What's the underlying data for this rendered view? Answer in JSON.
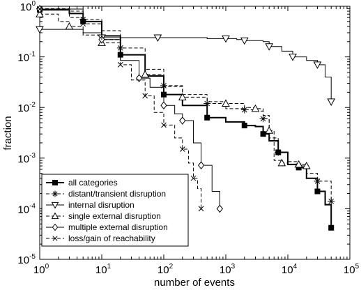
{
  "chart_data": {
    "type": "line",
    "xlabel": "number of events",
    "ylabel": "fraction",
    "xscale": "log",
    "yscale": "log",
    "xlim": [
      1,
      100000
    ],
    "ylim": [
      1e-05,
      1
    ],
    "x_ticks": [
      {
        "value": 1,
        "base": "10",
        "exp": "0"
      },
      {
        "value": 10,
        "base": "10",
        "exp": "1"
      },
      {
        "value": 100,
        "base": "10",
        "exp": "2"
      },
      {
        "value": 1000,
        "base": "10",
        "exp": "3"
      },
      {
        "value": 10000,
        "base": "10",
        "exp": "4"
      },
      {
        "value": 100000,
        "base": "10",
        "exp": "5"
      }
    ],
    "y_ticks": [
      {
        "value": 1e-05,
        "base": "10",
        "exp": "-5"
      },
      {
        "value": 0.0001,
        "base": "10",
        "exp": "-4"
      },
      {
        "value": 0.001,
        "base": "10",
        "exp": "-3"
      },
      {
        "value": 0.01,
        "base": "10",
        "exp": "-2"
      },
      {
        "value": 0.1,
        "base": "10",
        "exp": "-1"
      },
      {
        "value": 1,
        "base": "10",
        "exp": "0"
      }
    ],
    "grid": false,
    "legend_position": "bottom-left",
    "series": [
      {
        "name": "all categories",
        "style": "solid-thick",
        "marker": "filled-square",
        "color": "#000000",
        "x": [
          1,
          3,
          5,
          10,
          20,
          50,
          100,
          200,
          500,
          1000,
          2000,
          3000,
          4000,
          5000,
          7000,
          10000,
          15000,
          20000,
          30000,
          40000,
          50000
        ],
        "y": [
          0.85,
          0.72,
          0.5,
          0.26,
          0.11,
          0.042,
          0.018,
          0.011,
          0.0063,
          0.0052,
          0.0044,
          0.0042,
          0.003,
          0.0022,
          0.0013,
          0.00075,
          0.00065,
          0.0004,
          0.00022,
          0.00012,
          4.2e-05
        ]
      },
      {
        "name": "distant/transient disruption",
        "style": "dashed",
        "marker": "asterisk",
        "color": "#000000",
        "x": [
          1,
          3,
          5,
          10,
          20,
          50,
          100,
          200,
          500,
          1000,
          2000,
          3000,
          4000,
          5000,
          7000,
          10000,
          15000,
          20000,
          30000,
          50000
        ],
        "y": [
          0.9,
          0.8,
          0.55,
          0.33,
          0.15,
          0.057,
          0.027,
          0.018,
          0.012,
          0.0095,
          0.009,
          0.0085,
          0.006,
          0.0025,
          0.0013,
          0.00085,
          0.0007,
          0.0005,
          0.00035,
          0.00014
        ]
      },
      {
        "name": "internal disruption",
        "style": "solid-thin",
        "marker": "triangle-down",
        "color": "#000000",
        "x": [
          1,
          5,
          10,
          30,
          80,
          500,
          1000,
          1500,
          2000,
          4000,
          5000,
          8000,
          12000,
          20000,
          30000,
          40000,
          50000
        ],
        "y": [
          0.35,
          0.3,
          0.24,
          0.24,
          0.24,
          0.23,
          0.23,
          0.22,
          0.21,
          0.2,
          0.16,
          0.13,
          0.1,
          0.085,
          0.07,
          0.04,
          0.013
        ]
      },
      {
        "name": "single external disruption",
        "style": "dashed",
        "marker": "triangle-up",
        "color": "#000000",
        "x": [
          1,
          2,
          3,
          5,
          10,
          20,
          50,
          100,
          200,
          500,
          1000,
          2000,
          3000,
          4000,
          5000,
          6000,
          8000,
          10000,
          15000,
          20000
        ],
        "y": [
          0.7,
          0.5,
          0.4,
          0.27,
          0.19,
          0.11,
          0.045,
          0.026,
          0.016,
          0.013,
          0.012,
          0.01,
          0.0095,
          0.007,
          0.0035,
          0.0009,
          0.0008,
          0.00075,
          0.00075,
          0.0007
        ]
      },
      {
        "name": "multiple external disruption",
        "style": "solid-thin",
        "marker": "diamond",
        "color": "#000000",
        "x": [
          1,
          5,
          10,
          20,
          40,
          60,
          100,
          150,
          200,
          300,
          400,
          600,
          800
        ],
        "y": [
          0.88,
          0.5,
          0.22,
          0.085,
          0.038,
          0.025,
          0.011,
          0.0075,
          0.0055,
          0.002,
          0.00072,
          0.00022,
          0.0001
        ]
      },
      {
        "name": "loss/gain of reachability",
        "style": "dashed",
        "marker": "x-cross",
        "color": "#000000",
        "x": [
          1,
          3,
          5,
          10,
          20,
          30,
          50,
          70,
          100,
          150,
          200,
          250,
          300,
          350,
          400
        ],
        "y": [
          0.88,
          0.6,
          0.45,
          0.22,
          0.07,
          0.035,
          0.017,
          0.008,
          0.0045,
          0.0025,
          0.0015,
          0.0008,
          0.0004,
          0.00025,
          0.0001
        ]
      }
    ]
  }
}
